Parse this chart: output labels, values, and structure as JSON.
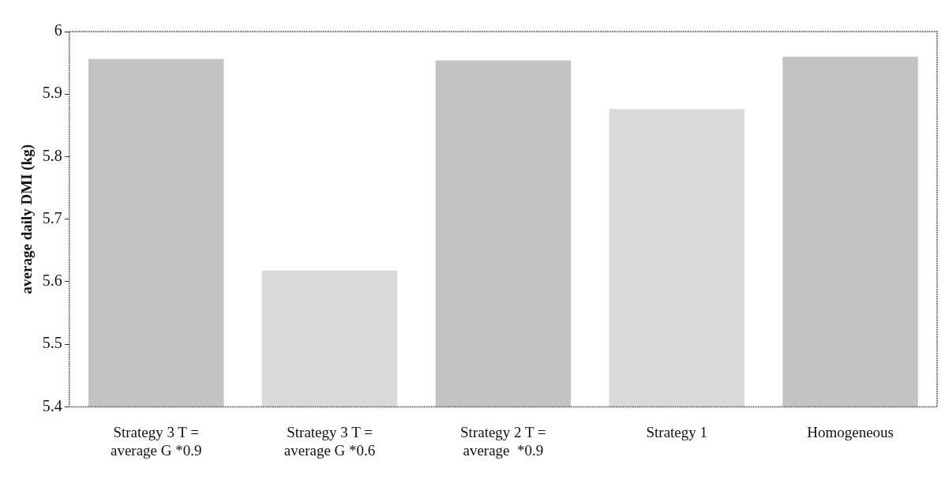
{
  "chart_data": {
    "type": "bar",
    "ylabel": "average daily DMI (kg)",
    "categories": [
      "Strategy 3 T =\naverage G *0.9",
      "Strategy 3 T =\naverage G *0.6",
      "Strategy 2 T =\naverage  *0.9",
      "Strategy 1",
      "Homogeneous"
    ],
    "values": [
      5.956,
      5.618,
      5.954,
      5.876,
      5.96
    ],
    "colors": [
      "#c4c4c4",
      "#dadada",
      "#c4c4c4",
      "#dadada",
      "#c4c4c4"
    ],
    "ylim": [
      5.4,
      6
    ],
    "yticks": [
      5.4,
      5.5,
      5.6,
      5.7,
      5.8,
      5.9,
      6
    ],
    "grid": false,
    "legend": false
  }
}
